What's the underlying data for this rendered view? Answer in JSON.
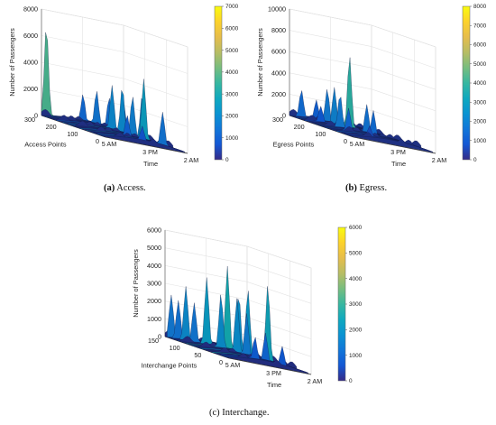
{
  "chart_data": [
    {
      "type": "surface3d",
      "caption_letter": "(a)",
      "caption_text": "Access.",
      "zlabel": "Number of Passengers",
      "xlabel": "Access Points",
      "ylabel": "Time",
      "zlim": [
        0,
        8000
      ],
      "z_ticks": [
        "0",
        "2000",
        "4000",
        "6000",
        "8000"
      ],
      "x_ticks": [
        "0",
        "100",
        "200",
        "300"
      ],
      "time_ticks": [
        "5 AM",
        "3 PM",
        "2 AM"
      ],
      "colorbar": {
        "min": 0,
        "max": 7000,
        "ticks": [
          "0",
          "1000",
          "2000",
          "3000",
          "4000",
          "5000",
          "6000",
          "7000"
        ]
      },
      "peaks": [
        {
          "point": 300,
          "time": 0.06,
          "value": 6800
        },
        {
          "point": 290,
          "time": 0.48,
          "value": 2200
        },
        {
          "point": 280,
          "time": 0.62,
          "value": 2700
        },
        {
          "point": 260,
          "time": 0.72,
          "value": 2400
        },
        {
          "point": 230,
          "time": 0.82,
          "value": 2200
        },
        {
          "point": 200,
          "time": 0.6,
          "value": 3500
        },
        {
          "point": 175,
          "time": 0.66,
          "value": 3600
        },
        {
          "point": 150,
          "time": 0.72,
          "value": 3100
        },
        {
          "point": 120,
          "time": 0.76,
          "value": 3400
        },
        {
          "point": 90,
          "time": 0.7,
          "value": 4700
        },
        {
          "point": 60,
          "time": 0.42,
          "value": 1800
        },
        {
          "point": 40,
          "time": 0.8,
          "value": 2600
        },
        {
          "point": 20,
          "time": 0.5,
          "value": 1300
        }
      ]
    },
    {
      "type": "surface3d",
      "caption_letter": "(b)",
      "caption_text": "Egress.",
      "zlabel": "Number of Passengers",
      "xlabel": "Egress Points",
      "ylabel": "Time",
      "zlim": [
        0,
        10000
      ],
      "z_ticks": [
        "0",
        "2000",
        "4000",
        "6000",
        "8000",
        "10000"
      ],
      "x_ticks": [
        "0",
        "100",
        "200",
        "300"
      ],
      "time_ticks": [
        "5 AM",
        "3 PM",
        "2 AM"
      ],
      "colorbar": {
        "min": 0,
        "max": 8000,
        "ticks": [
          "0",
          "1000",
          "2000",
          "3000",
          "4000",
          "5000",
          "6000",
          "7000",
          "8000"
        ]
      },
      "peaks": [
        {
          "point": 290,
          "time": 0.12,
          "value": 2600
        },
        {
          "point": 270,
          "time": 0.25,
          "value": 2000
        },
        {
          "point": 250,
          "time": 0.33,
          "value": 3300
        },
        {
          "point": 230,
          "time": 0.2,
          "value": 1600
        },
        {
          "point": 205,
          "time": 0.3,
          "value": 3700
        },
        {
          "point": 180,
          "time": 0.42,
          "value": 7000
        },
        {
          "point": 155,
          "time": 0.24,
          "value": 3300
        },
        {
          "point": 130,
          "time": 0.5,
          "value": 2900
        },
        {
          "point": 100,
          "time": 0.2,
          "value": 2300
        },
        {
          "point": 80,
          "time": 0.45,
          "value": 2600
        },
        {
          "point": 40,
          "time": 0.3,
          "value": 1200
        }
      ]
    },
    {
      "type": "surface3d",
      "caption_letter": "",
      "caption_text": "(c) Interchange.",
      "zlabel": "Number of Passengers",
      "xlabel": "Interchange Points",
      "ylabel": "Time",
      "zlim": [
        0,
        6000
      ],
      "z_ticks": [
        "0",
        "1000",
        "2000",
        "3000",
        "4000",
        "5000",
        "6000"
      ],
      "x_ticks": [
        "0",
        "50",
        "100",
        "150"
      ],
      "time_ticks": [
        "5 AM",
        "3 PM",
        "2 AM"
      ],
      "colorbar": {
        "min": 0,
        "max": 6000,
        "ticks": [
          "0",
          "1000",
          "2000",
          "3000",
          "4000",
          "5000",
          "6000"
        ]
      },
      "peaks": [
        {
          "point": 145,
          "time": 0.05,
          "value": 2400
        },
        {
          "point": 138,
          "time": 0.1,
          "value": 2200
        },
        {
          "point": 130,
          "time": 0.15,
          "value": 3100
        },
        {
          "point": 120,
          "time": 0.2,
          "value": 2300
        },
        {
          "point": 110,
          "time": 0.3,
          "value": 3900
        },
        {
          "point": 100,
          "time": 0.5,
          "value": 4800
        },
        {
          "point": 92,
          "time": 0.38,
          "value": 3200
        },
        {
          "point": 85,
          "time": 0.56,
          "value": 3400
        },
        {
          "point": 75,
          "time": 0.62,
          "value": 3800
        },
        {
          "point": 68,
          "time": 0.45,
          "value": 3200
        },
        {
          "point": 55,
          "time": 0.5,
          "value": 2500
        },
        {
          "point": 40,
          "time": 0.68,
          "value": 4400
        },
        {
          "point": 30,
          "time": 0.6,
          "value": 1700
        },
        {
          "point": 20,
          "time": 0.42,
          "value": 1400
        },
        {
          "point": 10,
          "time": 0.7,
          "value": 1200
        }
      ]
    }
  ]
}
